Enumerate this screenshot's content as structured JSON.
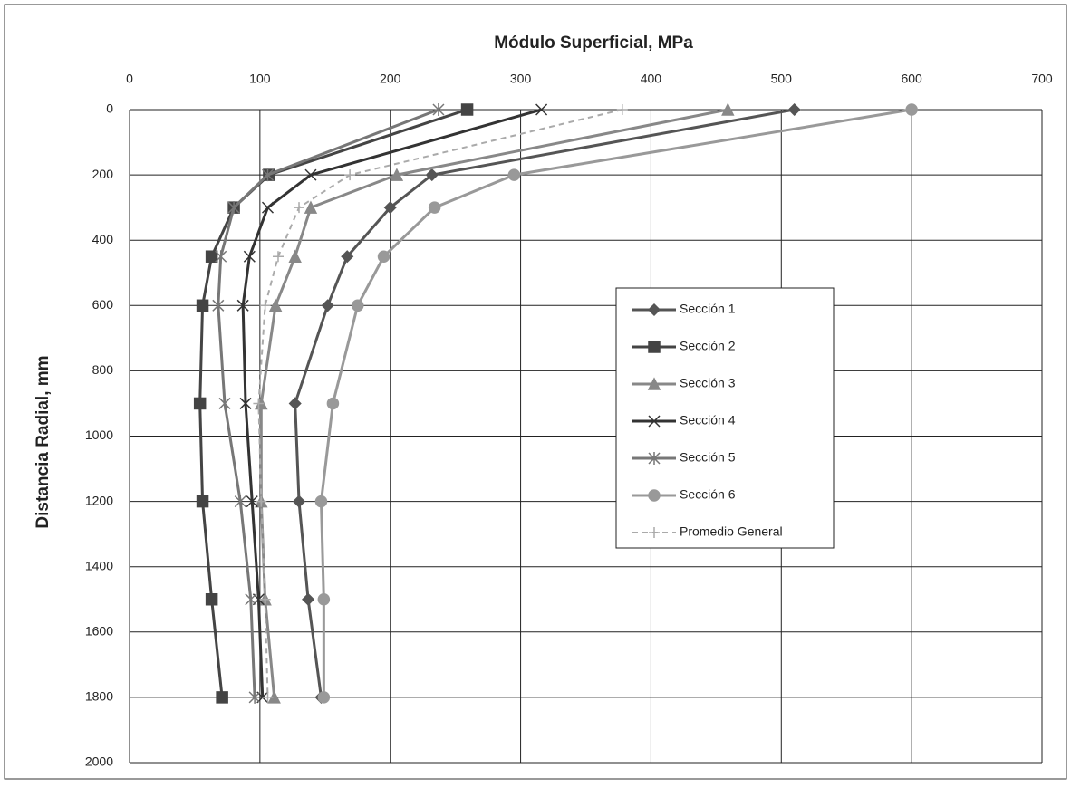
{
  "chart_data": {
    "type": "line",
    "title": "Módulo Superficial, MPa",
    "ylabel": "Distancia Radial, mm",
    "y": [
      0,
      200,
      300,
      450,
      600,
      900,
      1200,
      1500,
      1800
    ],
    "series": [
      {
        "name": "Sección 1",
        "color": "#555555",
        "marker": "diamond",
        "values": [
          510,
          232,
          200,
          167,
          152,
          127,
          130,
          137,
          147
        ]
      },
      {
        "name": "Sección 2",
        "color": "#444444",
        "marker": "square",
        "values": [
          259,
          107,
          80,
          63,
          56,
          54,
          56,
          63,
          71
        ]
      },
      {
        "name": "Sección 3",
        "color": "#888888",
        "marker": "triangle",
        "values": [
          459,
          205,
          139,
          127,
          112,
          101,
          101,
          104,
          111
        ]
      },
      {
        "name": "Sección 4",
        "color": "#333333",
        "marker": "x",
        "values": [
          316,
          139,
          106,
          92,
          87,
          89,
          94,
          99,
          102
        ]
      },
      {
        "name": "Sección 5",
        "color": "#777777",
        "marker": "star",
        "values": [
          237,
          106,
          80,
          70,
          68,
          73,
          85,
          93,
          96
        ]
      },
      {
        "name": "Sección 6",
        "color": "#999999",
        "marker": "circle",
        "values": [
          600,
          295,
          234,
          195,
          175,
          156,
          147,
          149,
          149
        ]
      },
      {
        "name": "Promedio General",
        "color": "#aaaaaa",
        "marker": "plus",
        "dashed": true,
        "values": [
          378,
          169,
          130,
          114,
          104,
          99,
          101,
          104,
          106
        ]
      }
    ],
    "xlim": [
      0,
      700
    ],
    "xticks": [
      0,
      100,
      200,
      300,
      400,
      500,
      600,
      700
    ],
    "ylim": [
      0,
      2000
    ],
    "yticks": [
      0,
      200,
      400,
      600,
      800,
      1000,
      1200,
      1400,
      1600,
      1800,
      2000
    ],
    "y_inverted": true,
    "x_axis_top": true,
    "grid": true,
    "legend": "center-right"
  }
}
